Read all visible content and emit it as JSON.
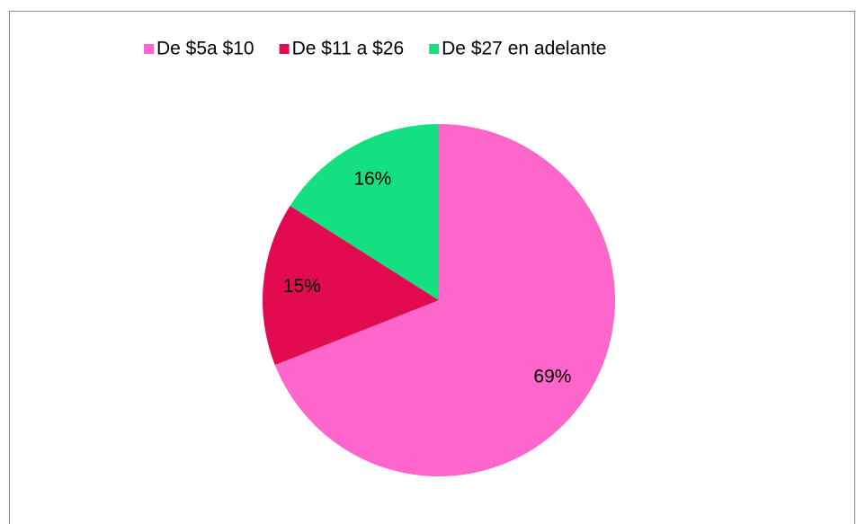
{
  "chart_data": {
    "type": "pie",
    "categories": [
      "De $5a $10",
      "De $11 a $26",
      "De $27 en adelante"
    ],
    "values": [
      69,
      15,
      16
    ],
    "value_labels": [
      "69%",
      "15%",
      "16%"
    ],
    "colors": [
      "#ff66cc",
      "#e30b50",
      "#14e081"
    ],
    "legend": "top"
  }
}
